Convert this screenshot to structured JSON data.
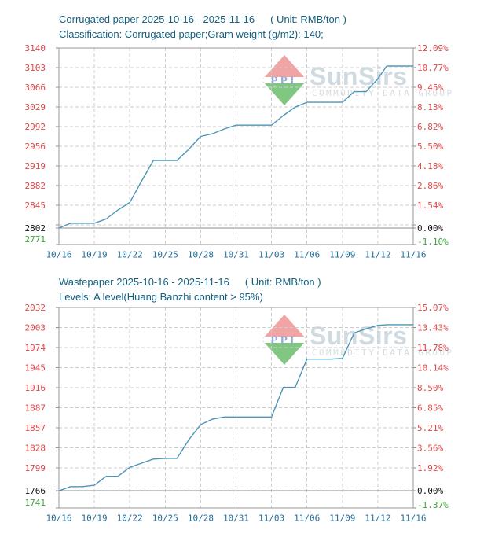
{
  "theme": {
    "background": "#ffffff",
    "title_color": "#14607f",
    "x_label_color": "#226e9c",
    "axis_label_red": "#e04747",
    "axis_label_black": "#141414",
    "axis_label_green": "#3ca53c",
    "grid_color": "#cdcdcd",
    "frame_color": "#9a9a9a",
    "watermark": {
      "red": "#f09b9b",
      "green": "#74c074",
      "logo_blue": "#8aa3d4",
      "brand_color": "#ccd6de",
      "tagline_color": "#d4dade"
    }
  },
  "watermark": {
    "logo": "PPI",
    "brand": "SunSirs",
    "tagline": "COMMODITY DATA GROUP"
  },
  "chart_data": [
    {
      "type": "line",
      "title": "Corrugated paper 2025-10-16 - 2025-11-16",
      "unit_label": "( Unit: RMB/ton )",
      "subtitle": "Classification: Corrugated paper;Gram weight (g/m2): 140;",
      "x": [
        "10/16",
        "10/17",
        "10/18",
        "10/19",
        "10/20",
        "10/21",
        "10/22",
        "10/23",
        "10/24",
        "10/25",
        "10/26",
        "10/27",
        "10/28",
        "10/29",
        "10/30",
        "10/31",
        "11/01",
        "11/02",
        "11/03",
        "11/04",
        "11/05",
        "11/06",
        "11/07",
        "11/08",
        "11/09",
        "11/10",
        "11/11",
        "11/12",
        "11/13",
        "11/14",
        "11/15",
        "11/16"
      ],
      "values": [
        2802,
        2811,
        2811,
        2811,
        2819,
        2836,
        2850,
        2890,
        2929,
        2929,
        2929,
        2950,
        2974,
        2979,
        2988,
        2995,
        2995,
        2995,
        2995,
        3013,
        3029,
        3038,
        3038,
        3038,
        3038,
        3058,
        3058,
        3082,
        3106,
        3106,
        3106,
        3106
      ],
      "baseline_value": 2802,
      "ylim": [
        2771,
        3140
      ],
      "grid": true,
      "line_color": "#4d95b8",
      "x_tick_labels": [
        "10/16",
        "10/19",
        "10/22",
        "10/25",
        "10/28",
        "10/31",
        "11/03",
        "11/06",
        "11/09",
        "11/12",
        "11/16"
      ],
      "x_tick_indices": [
        0,
        3,
        6,
        9,
        12,
        15,
        18,
        21,
        24,
        27,
        31
      ],
      "y_axis_left_labels": [
        "3140",
        "3103",
        "3066",
        "3029",
        "2992",
        "2956",
        "2919",
        "2882",
        "2845",
        "2802",
        "2771"
      ],
      "y_axis_right_labels": [
        "12.09%",
        "10.77%",
        "9.45%",
        "8.13%",
        "6.82%",
        "5.50%",
        "4.18%",
        "2.86%",
        "1.54%",
        "0.00%",
        "-1.10%"
      ]
    },
    {
      "type": "line",
      "title": "Wastepaper 2025-10-16 - 2025-11-16",
      "unit_label": "( Unit: RMB/ton )",
      "subtitle": "Levels: A level(Huang Banzhi content > 95%)",
      "x": [
        "10/16",
        "10/17",
        "10/18",
        "10/19",
        "10/20",
        "10/21",
        "10/22",
        "10/23",
        "10/24",
        "10/25",
        "10/26",
        "10/27",
        "10/28",
        "10/29",
        "10/30",
        "10/31",
        "11/01",
        "11/02",
        "11/03",
        "11/04",
        "11/05",
        "11/06",
        "11/07",
        "11/08",
        "11/09",
        "11/10",
        "11/11",
        "11/12",
        "11/13",
        "11/14",
        "11/15",
        "11/16"
      ],
      "values": [
        1766,
        1772,
        1772,
        1774,
        1787,
        1787,
        1800,
        1806,
        1812,
        1813,
        1813,
        1840,
        1862,
        1870,
        1873,
        1873,
        1873,
        1873,
        1873,
        1916,
        1916,
        1957,
        1957,
        1957,
        1958,
        1995,
        2001,
        2006,
        2007,
        2007,
        2007,
        2007
      ],
      "baseline_value": 1766,
      "ylim": [
        1741,
        2032
      ],
      "grid": true,
      "line_color": "#4d95b8",
      "x_tick_labels": [
        "10/16",
        "10/19",
        "10/22",
        "10/25",
        "10/28",
        "10/31",
        "11/03",
        "11/06",
        "11/09",
        "11/12",
        "11/16"
      ],
      "x_tick_indices": [
        0,
        3,
        6,
        9,
        12,
        15,
        18,
        21,
        24,
        27,
        31
      ],
      "y_axis_left_labels": [
        "2032",
        "2003",
        "1974",
        "1945",
        "1916",
        "1887",
        "1857",
        "1828",
        "1799",
        "1766",
        "1741"
      ],
      "y_axis_right_labels": [
        "15.07%",
        "13.43%",
        "11.78%",
        "10.14%",
        "8.50%",
        "6.85%",
        "5.21%",
        "3.56%",
        "1.92%",
        "0.00%",
        "-1.37%"
      ]
    }
  ]
}
